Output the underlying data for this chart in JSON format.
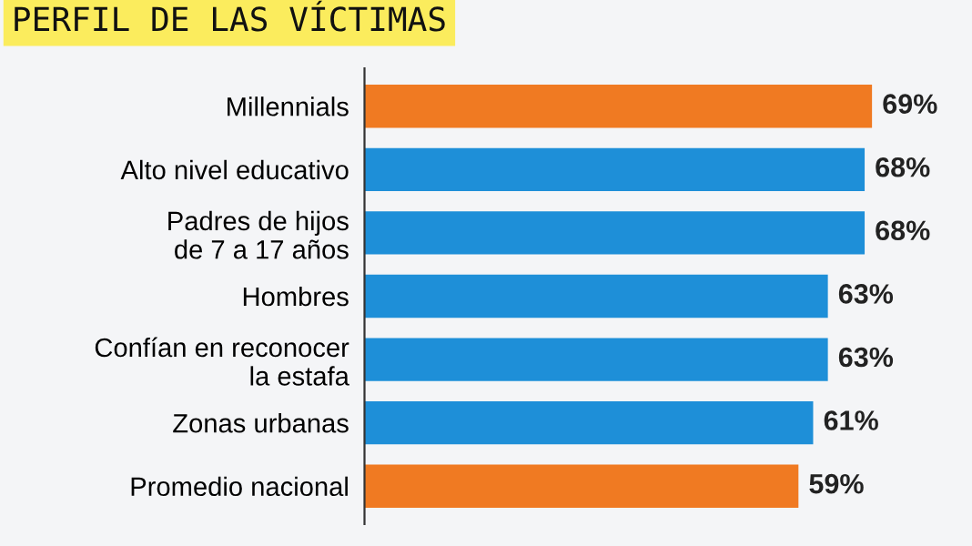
{
  "chart_data": {
    "type": "bar",
    "orientation": "horizontal",
    "title": "PERFIL DE LAS VÍCTIMAS",
    "categories": [
      "Millennials",
      "Alto nivel educativo",
      "Padres de hijos\nde 7 a 17 años",
      "Hombres",
      "Confían en reconocer\nla estafa",
      "Zonas urbanas",
      "Promedio nacional"
    ],
    "values": [
      69,
      68,
      68,
      63,
      63,
      61,
      59
    ],
    "colors": [
      "#f07a22",
      "#1e8fd8",
      "#1e8fd8",
      "#1e8fd8",
      "#1e8fd8",
      "#1e8fd8",
      "#f07a22"
    ],
    "value_labels": [
      "69%",
      "68%",
      "68%",
      "63%",
      "63%",
      "61%",
      "59%"
    ],
    "grid": false,
    "legend": false,
    "tick_labels": "y"
  }
}
